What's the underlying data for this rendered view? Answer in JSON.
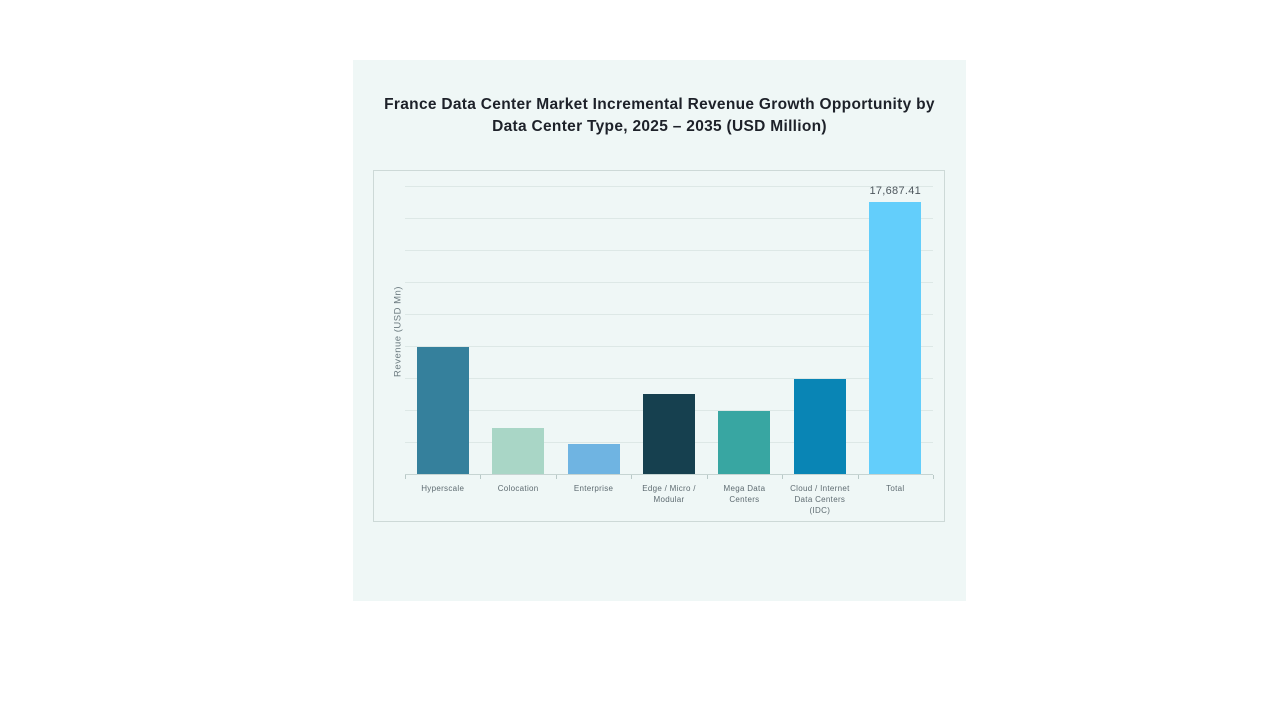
{
  "page": {
    "background": "#ffffff"
  },
  "card": {
    "background": "#eff7f6"
  },
  "header": {
    "title_lines": [
      "France Data Center Market Incremental Revenue Growth Opportunity by",
      "Data Center Type, 2025 – 2035 (USD Million)"
    ]
  },
  "chart_data": {
    "type": "bar",
    "title": "France Data Center Market Incremental Revenue Growth Opportunity by Data Center Type, 2025 – 2035 (USD Million)",
    "xlabel": "",
    "ylabel": "Revenue (USD Mn)",
    "ylim": [
      0,
      19800
    ],
    "grid": true,
    "gridline_count": 10,
    "legend": false,
    "categories": [
      "Hyperscale",
      "Colocation",
      "Enterprise",
      "Edge / Micro /\nModular",
      "Mega Data\nCenters",
      "Cloud / Internet\nData Centers\n(IDC)",
      "Total"
    ],
    "values": [
      8290,
      3000,
      1960,
      5190,
      4080,
      6200,
      17687.41
    ],
    "data_labels": [
      "",
      "",
      "",
      "",
      "",
      "",
      "17,687.41"
    ],
    "bar_colors": [
      "#35809C",
      "#A9D6C6",
      "#6FB4E2",
      "#16404F",
      "#38A6A2",
      "#0985B5",
      "#63CEFB"
    ],
    "axis_colors": {
      "gridline": "#dde8e6",
      "baseline": "#c6d4d2",
      "tick": "#b9c9c7",
      "panel_border": "#cdd9d7",
      "category_text": "#5e6b71",
      "value_label_text": "#4d565c",
      "axis_title_text": "#6b7a7f",
      "title_text": "#1d2129"
    }
  }
}
